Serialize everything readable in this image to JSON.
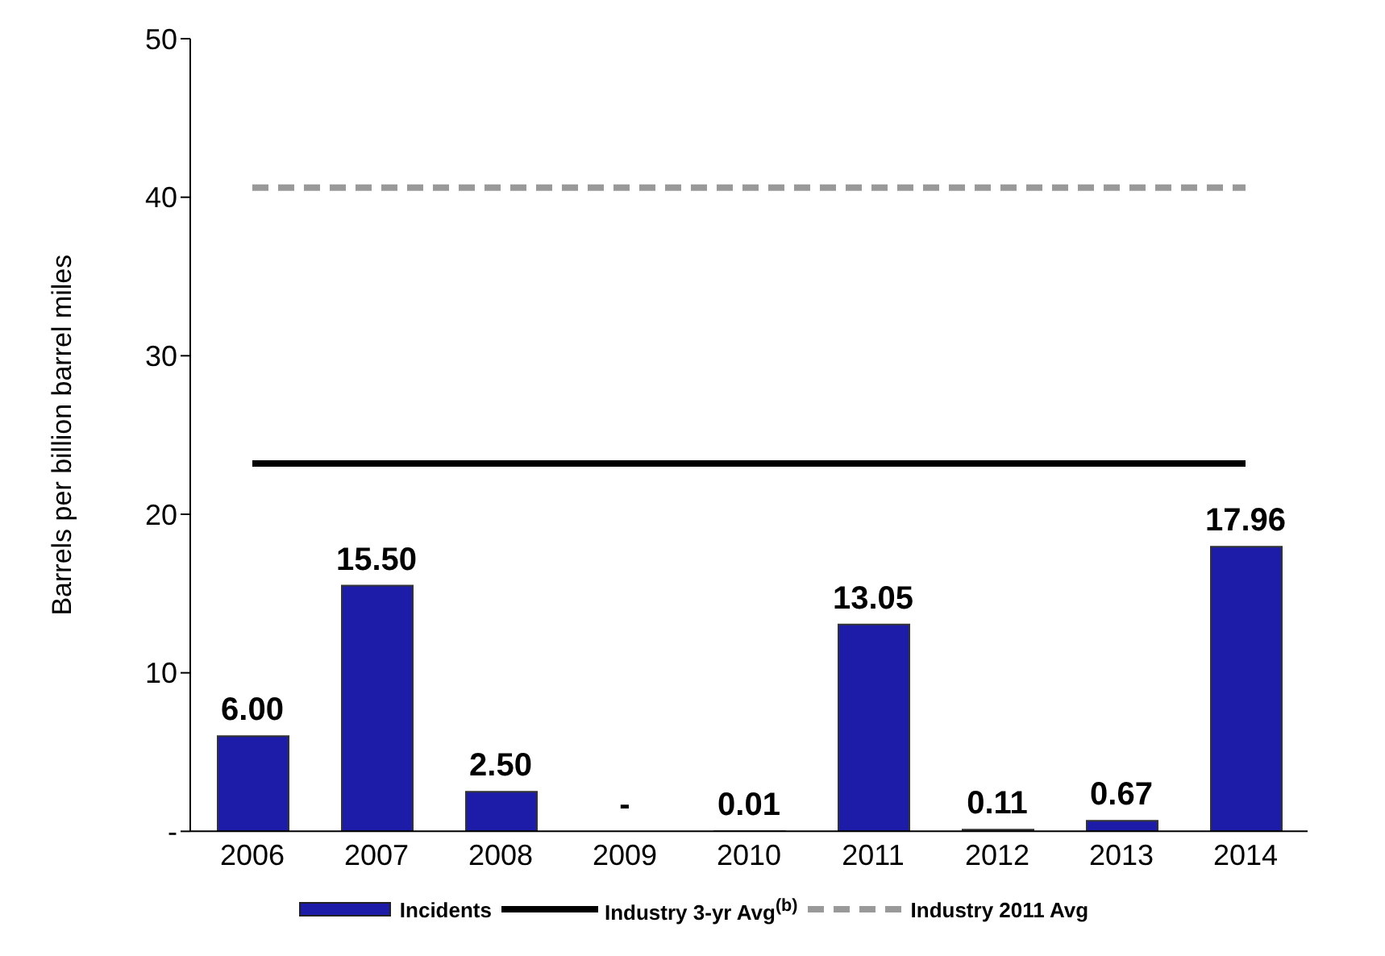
{
  "chart_data": {
    "type": "bar",
    "ylabel": "Barrels per billion barrel miles",
    "categories": [
      "2006",
      "2007",
      "2008",
      "2009",
      "2010",
      "2011",
      "2012",
      "2013",
      "2014"
    ],
    "series": [
      {
        "name": "Incidents",
        "type": "bar",
        "color": "#1c1ca8",
        "values": [
          6.0,
          15.5,
          2.5,
          0,
          0.01,
          13.05,
          0.11,
          0.67,
          17.96
        ],
        "value_labels": [
          "6.00",
          "15.50",
          "2.50",
          "-",
          "0.01",
          "13.05",
          "0.11",
          "0.67",
          "17.96"
        ]
      },
      {
        "name": "Industry 3-yr Avg$^{(b)}$",
        "type": "line",
        "color": "#000000",
        "line_style": "solid",
        "values": [
          23.2,
          23.2,
          23.2,
          23.2,
          23.2,
          23.2,
          23.2,
          23.2,
          23.2
        ]
      },
      {
        "name": "Industry 2011 Avg",
        "type": "line",
        "color": "#999999",
        "line_style": "dashed",
        "values": [
          40.6,
          40.6,
          40.6,
          40.6,
          40.6,
          40.6,
          40.6,
          40.6,
          40.6
        ]
      }
    ],
    "ylim": [
      0,
      50
    ],
    "yticks": [
      {
        "value": 0,
        "label": "-"
      },
      10,
      20,
      30,
      40,
      50
    ],
    "grid": false,
    "legend": "bottom",
    "marker": "none"
  }
}
